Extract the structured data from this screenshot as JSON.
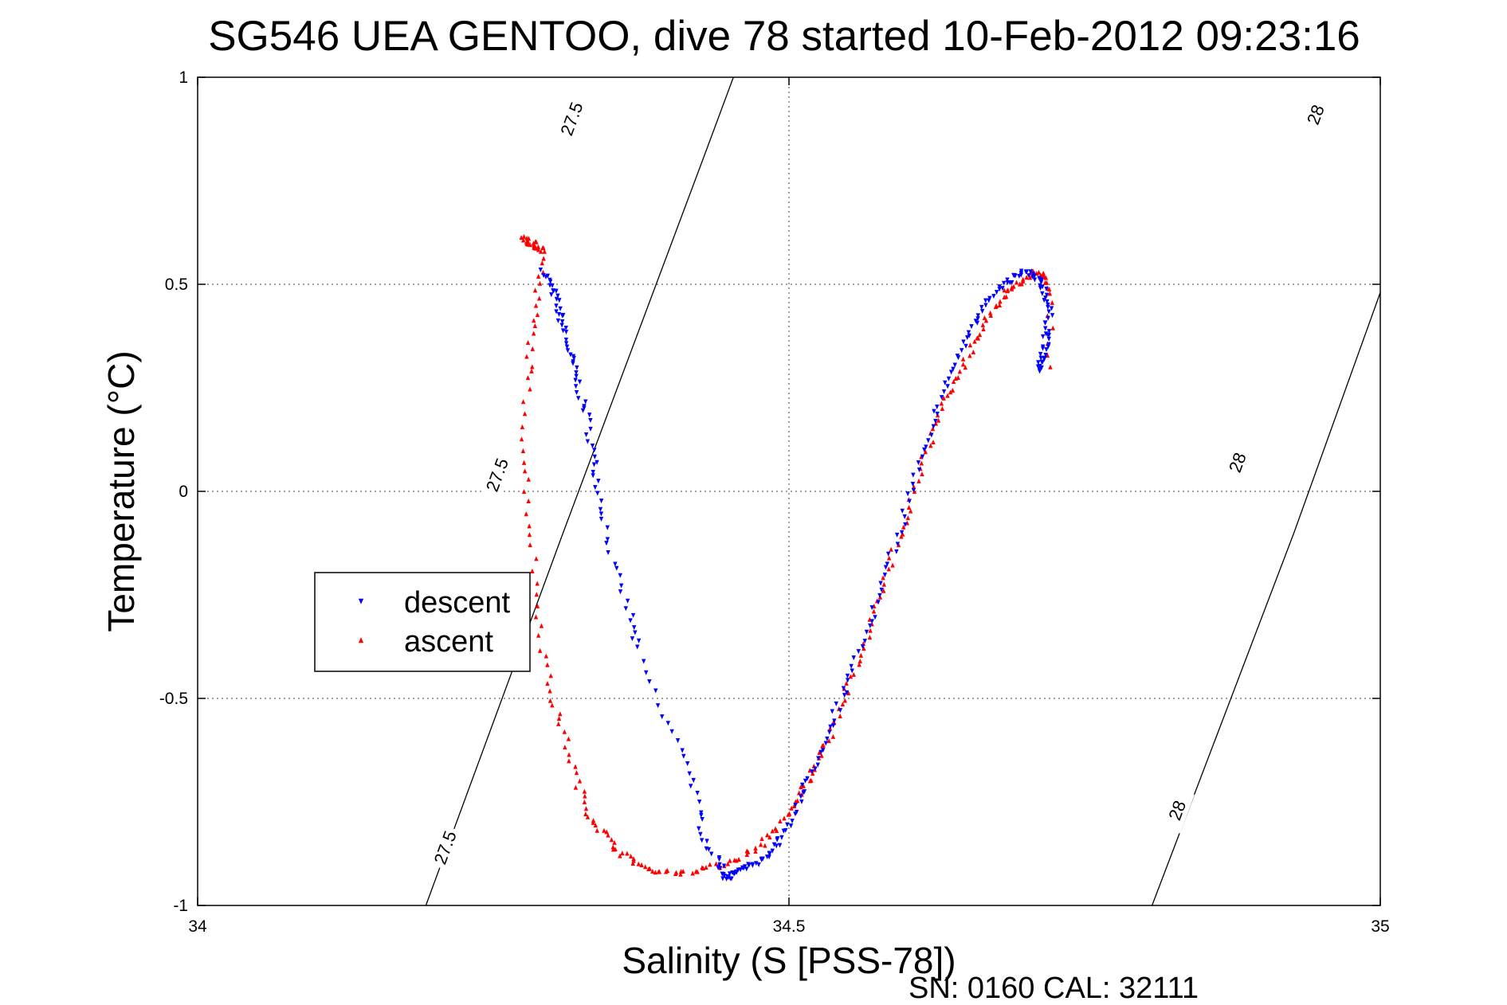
{
  "chart_data": {
    "type": "scatter",
    "title": "SG546 UEA GENTOO, dive 78 started 10-Feb-2012 09:23:16",
    "xlabel": "Salinity (S [PSS-78])",
    "ylabel": "Temperature (°C)",
    "xlim": [
      34,
      35
    ],
    "ylim": [
      -1,
      1
    ],
    "xticks": [
      34,
      34.5,
      35
    ],
    "xtick_labels": [
      "34",
      "34.5",
      "35"
    ],
    "yticks": [
      -1,
      -0.5,
      0,
      0.5,
      1
    ],
    "ytick_labels": [
      "-1",
      "-0.5",
      "0",
      "0.5",
      "1"
    ],
    "grid": true,
    "legend_position": "center-left",
    "contours": [
      {
        "level_label": "27.5",
        "points": [
          [
            34.193,
            -1.0
          ],
          [
            34.309,
            -0.1
          ],
          [
            34.427,
            0.8
          ],
          [
            34.453,
            1.0
          ]
        ],
        "label_positions": [
          [
            34.209,
            -0.86
          ],
          [
            34.253,
            0.04
          ],
          [
            34.316,
            0.9
          ]
        ]
      },
      {
        "level_label": "28",
        "points": [
          [
            34.807,
            -1.0
          ],
          [
            34.927,
            -0.1
          ],
          [
            35.0,
            0.48
          ]
        ],
        "label_positions": [
          [
            34.828,
            -0.77
          ],
          [
            34.879,
            0.07
          ],
          [
            34.945,
            0.91
          ]
        ]
      }
    ],
    "series": [
      {
        "name": "descent",
        "color": "#0000ff",
        "marker": "triangle-down",
        "x": [
          34.293,
          34.298,
          34.302,
          34.306,
          34.309,
          34.314,
          34.318,
          34.323,
          34.329,
          34.334,
          34.338,
          34.344,
          34.352,
          34.366,
          34.371,
          34.393,
          34.416,
          34.423,
          34.43,
          34.442,
          34.446,
          34.451,
          34.454,
          34.462,
          34.471,
          34.481,
          34.49,
          34.499,
          34.508,
          34.517,
          34.527,
          34.537,
          34.548,
          34.559,
          34.571,
          34.582,
          34.592,
          34.602,
          34.611,
          34.622,
          34.632,
          34.642,
          34.652,
          34.662,
          34.672,
          34.681,
          34.69,
          34.699,
          34.707,
          34.714,
          34.718,
          34.72,
          34.719,
          34.717,
          34.715,
          34.713,
          34.712
        ],
        "y": [
          0.53,
          0.5,
          0.47,
          0.43,
          0.4,
          0.34,
          0.3,
          0.24,
          0.18,
          0.1,
          0.02,
          -0.07,
          -0.19,
          -0.3,
          -0.38,
          -0.54,
          -0.66,
          -0.77,
          -0.85,
          -0.9,
          -0.93,
          -0.93,
          -0.92,
          -0.91,
          -0.9,
          -0.88,
          -0.85,
          -0.81,
          -0.75,
          -0.69,
          -0.62,
          -0.55,
          -0.47,
          -0.39,
          -0.3,
          -0.2,
          -0.11,
          -0.01,
          0.08,
          0.17,
          0.25,
          0.32,
          0.38,
          0.43,
          0.47,
          0.5,
          0.52,
          0.53,
          0.52,
          0.5,
          0.47,
          0.43,
          0.39,
          0.36,
          0.33,
          0.31,
          0.29
        ]
      },
      {
        "name": "ascent",
        "color": "#ff0000",
        "marker": "triangle-up",
        "x": [
          34.275,
          34.279,
          34.284,
          34.288,
          34.293,
          34.287,
          34.283,
          34.279,
          34.276,
          34.28,
          34.286,
          34.292,
          34.3,
          34.311,
          34.321,
          34.331,
          34.342,
          34.354,
          34.366,
          34.38,
          34.395,
          34.41,
          34.428,
          34.445,
          34.462,
          34.477,
          34.491,
          34.503,
          34.514,
          34.524,
          34.533,
          34.543,
          34.553,
          34.564,
          34.574,
          34.584,
          34.594,
          34.603,
          34.613,
          34.623,
          34.633,
          34.643,
          34.653,
          34.663,
          34.673,
          34.683,
          34.693,
          34.702,
          34.71,
          34.715,
          34.72,
          34.721
        ],
        "y": [
          0.62,
          0.6,
          0.6,
          0.59,
          0.58,
          0.48,
          0.38,
          0.27,
          0.1,
          -0.05,
          -0.22,
          -0.38,
          -0.5,
          -0.6,
          -0.7,
          -0.78,
          -0.82,
          -0.86,
          -0.89,
          -0.91,
          -0.92,
          -0.92,
          -0.91,
          -0.9,
          -0.88,
          -0.85,
          -0.81,
          -0.76,
          -0.71,
          -0.66,
          -0.6,
          -0.53,
          -0.45,
          -0.37,
          -0.28,
          -0.19,
          -0.1,
          -0.02,
          0.07,
          0.15,
          0.22,
          0.28,
          0.34,
          0.39,
          0.44,
          0.48,
          0.5,
          0.52,
          0.53,
          0.52,
          0.48,
          0.3
        ]
      }
    ],
    "legend": [
      {
        "label": "descent",
        "marker": "triangle-down",
        "color": "#0000ff"
      },
      {
        "label": "ascent",
        "marker": "triangle-up",
        "color": "#ff0000"
      }
    ],
    "footer": "SN: 0160  CAL: 32111"
  }
}
